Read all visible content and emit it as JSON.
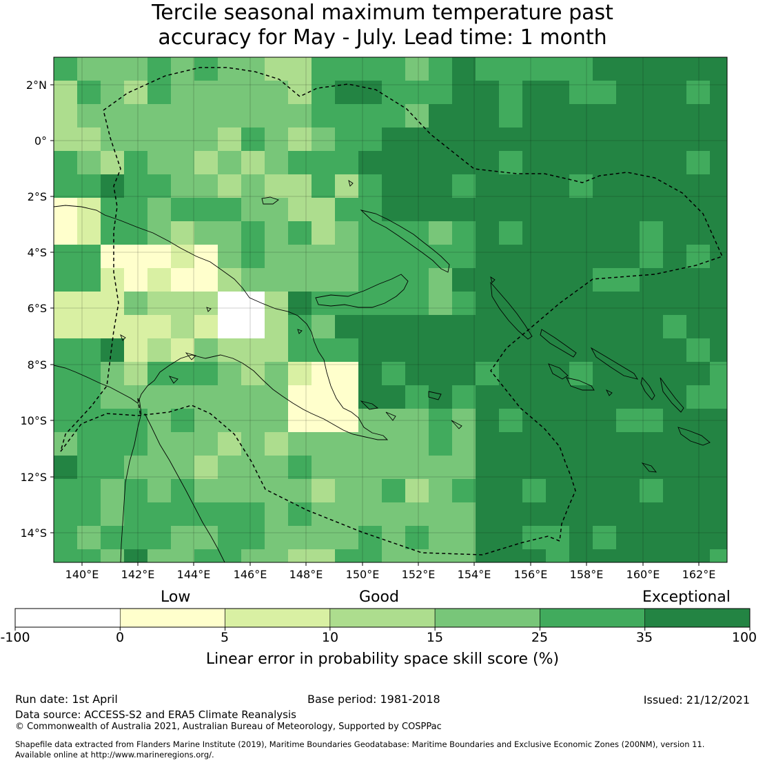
{
  "title": {
    "line1": "Tercile seasonal maximum temperature past",
    "line2": "accuracy for May - July. Lead time: 1 month"
  },
  "map": {
    "lat_labels": [
      "2°N",
      "0°",
      "2°S",
      "4°S",
      "6°S",
      "8°S",
      "10°S",
      "12°S",
      "14°S"
    ],
    "lon_labels": [
      "140°E",
      "142°E",
      "144°E",
      "146°E",
      "148°E",
      "150°E",
      "152°E",
      "154°E",
      "156°E",
      "158°E",
      "160°E",
      "162°E"
    ],
    "extent": {
      "lon_min": 139.0,
      "lon_max": 163.0,
      "lat_min": -15.0,
      "lat_max": 3.0
    },
    "grid_resolution_deg": 0.8
  },
  "colorbar": {
    "qualitative": {
      "low": "Low",
      "good": "Good",
      "exceptional": "Exceptional"
    },
    "ticks": [
      "-100",
      "0",
      "5",
      "10",
      "15",
      "25",
      "35",
      "100"
    ],
    "colors": [
      "#ffffff",
      "#ffffcc",
      "#d9f0a3",
      "#addd8e",
      "#78c679",
      "#41ab5d",
      "#238443"
    ],
    "label": "Linear error in probability space skill score (%)"
  },
  "footer": {
    "run_date": "Run date: 1st April",
    "base_period": "Base period: 1981-2018",
    "issued": "Issued: 21/12/2021",
    "data_source": "Data source: ACCESS-S2 and ERA5 Climate Reanalysis",
    "copyright": "© Commonwealth of Australia 2021, Australian Bureau of Meteorology, Supported by COSPPac",
    "shapefile1": "Shapefile data extracted from Flanders Marine Institute (2019), Maritime Boundaries Geodatabase: Maritime Boundaries and Exclusive Economic Zones (200NM), version 11.",
    "shapefile2": "Available online at http://www.marineregions.org/."
  }
}
